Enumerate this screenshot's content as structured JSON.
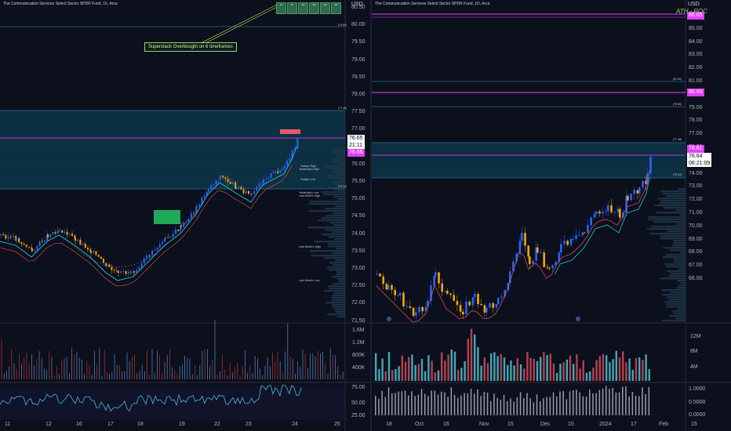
{
  "left_chart": {
    "title": "The Communication Services Select Sector SPDR Fund, 1h, Arca",
    "currency": "USD",
    "price_labels": [
      "80.50",
      "80.00",
      "79.50",
      "79.00",
      "78.50",
      "78.00",
      "77.50",
      "77.00",
      "76.50",
      "76.00",
      "75.50",
      "75.00",
      "74.50",
      "74.00",
      "73.50",
      "73.00",
      "72.50",
      "72.00",
      "71.50"
    ],
    "current_price": "76.65",
    "countdown": "21:11",
    "level_price": "76.65",
    "volume_labels": [
      "1.6M",
      "1.2M",
      "800K",
      "400K"
    ],
    "oscillator_labels": [
      "75.00",
      "50.00",
      "25.00"
    ],
    "x_labels": [
      "11",
      "12",
      "16",
      "17",
      "18",
      "19",
      "22",
      "23",
      "24",
      "25"
    ],
    "callout": "Superstack Overbought on 6 timeframes",
    "level_notes": [
      "(79.50)",
      "(77.48)",
      "(75.12)"
    ],
    "annotations": [
      "Today's High",
      "Yesterday's High",
      "Today's Low",
      "Yesterday's Low",
      "Last Week's High",
      "Last Month's High",
      "Last Week's Low"
    ]
  },
  "right_chart": {
    "title": "The Communication Services Select Sector SPDR Fund, 1D, Arca",
    "currency": "USD",
    "price_labels": [
      "86.00",
      "85.00",
      "84.00",
      "83.00",
      "82.00",
      "81.00",
      "80.00",
      "79.00",
      "78.00",
      "77.00",
      "76.00",
      "75.00",
      "74.00",
      "73.00",
      "72.00",
      "71.00",
      "70.00",
      "69.00",
      "68.00",
      "67.00",
      "66.00"
    ],
    "ath_price": "86.05",
    "level_price": "80.93",
    "level2_price": "76.61",
    "current_price": "76.64",
    "countdown": "06:21:09",
    "ath_label": "ATH - POC",
    "volume_labels": [
      "12M",
      "8M",
      "4M"
    ],
    "oscillator_labels": [
      "1.0000",
      "0.5000",
      "0.0000"
    ],
    "x_labels": [
      "18",
      "Oct",
      "16",
      "Nov",
      "15",
      "Dec",
      "15",
      "2024",
      "17",
      "Feb",
      "15"
    ],
    "level_notes": [
      "(81.00)",
      "(78.50)",
      "(77.48)",
      "(75.12)"
    ]
  },
  "colors": {
    "bull": "#2962ff",
    "bear": "#f7a600",
    "zone": "#1a5f7a",
    "magenta": "#e040fb",
    "up_volume": "#26a69a",
    "down_volume": "#ef5350"
  }
}
